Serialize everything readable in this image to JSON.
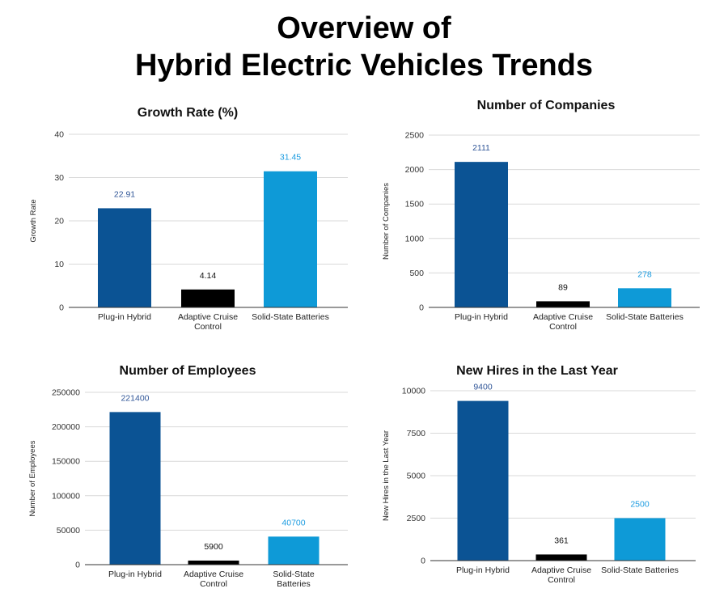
{
  "page": {
    "title_line1": "Overview of",
    "title_line2": "Hybrid Electric Vehicles Trends"
  },
  "colors": {
    "plug_in_hybrid": "#0b5394",
    "adaptive_cruise_control": "#000000",
    "solid_state_batteries": "#0e9ad7",
    "label_plug_in_hybrid": "#2f5597",
    "label_adaptive_cruise_control": "#111111",
    "label_solid_state_batteries": "#1a9be0"
  },
  "chart_data": [
    {
      "type": "bar",
      "title": "Growth Rate (%)",
      "ylabel": "Growth Rate",
      "xlabel": "",
      "categories": [
        [
          "Plug-in Hybrid"
        ],
        [
          "Adaptive Cruise",
          "Control"
        ],
        [
          "Solid-State Batteries"
        ]
      ],
      "values": [
        22.91,
        4.14,
        31.45
      ],
      "value_labels": [
        "22.91",
        "4.14",
        "31.45"
      ],
      "ylim": [
        0,
        40
      ],
      "yticks": [
        0,
        10,
        20,
        30,
        40
      ],
      "grid": true
    },
    {
      "type": "bar",
      "title": "Number of Companies",
      "ylabel": "Number of Companies",
      "xlabel": "",
      "categories": [
        [
          "Plug-in Hybrid"
        ],
        [
          "Adaptive Cruise",
          "Control"
        ],
        [
          "Solid-State Batteries"
        ]
      ],
      "values": [
        2111,
        89,
        278
      ],
      "value_labels": [
        "2111",
        "89",
        "278"
      ],
      "ylim": [
        0,
        2500
      ],
      "yticks": [
        0,
        500,
        1000,
        1500,
        2000,
        2500
      ],
      "grid": true
    },
    {
      "type": "bar",
      "title": "Number of Employees",
      "ylabel": "Number of Employees",
      "xlabel": "",
      "categories": [
        [
          "Plug-in Hybrid"
        ],
        [
          "Adaptive Cruise",
          "Control"
        ],
        [
          "Solid-State",
          "Batteries"
        ]
      ],
      "values": [
        221400,
        5900,
        40700
      ],
      "value_labels": [
        "221400",
        "5900",
        "40700"
      ],
      "ylim": [
        0,
        250000
      ],
      "yticks": [
        0,
        50000,
        100000,
        150000,
        200000,
        250000
      ],
      "grid": true
    },
    {
      "type": "bar",
      "title": "New Hires in the Last Year",
      "ylabel": "New Hires in the Last Year",
      "xlabel": "",
      "categories": [
        [
          "Plug-in Hybrid"
        ],
        [
          "Adaptive Cruise",
          "Control"
        ],
        [
          "Solid-State Batteries"
        ]
      ],
      "values": [
        9400,
        361,
        2500
      ],
      "value_labels": [
        "9400",
        "361",
        "2500"
      ],
      "ylim": [
        0,
        10000
      ],
      "yticks": [
        0,
        2500,
        5000,
        7500,
        10000
      ],
      "grid": true
    }
  ]
}
